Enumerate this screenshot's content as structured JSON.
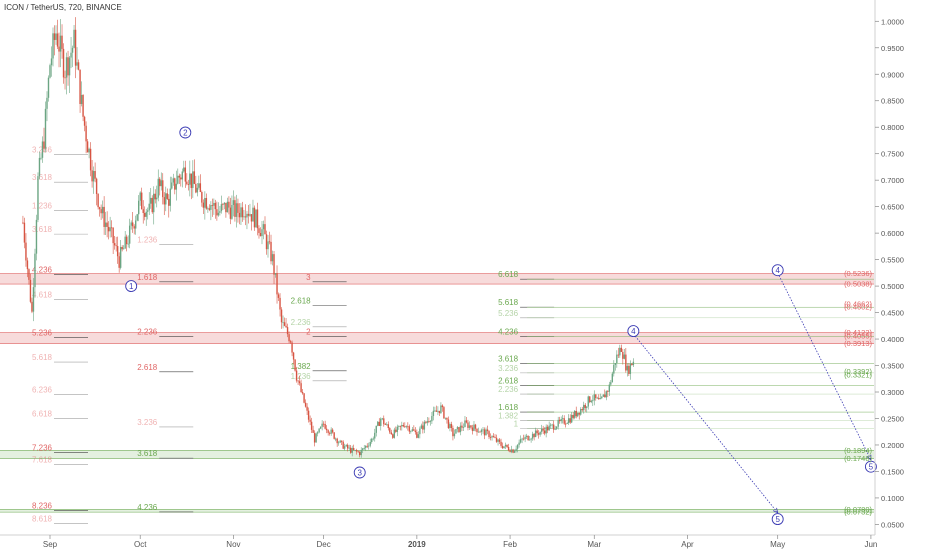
{
  "title": "ICON / TetherUS, 720, BINANCE",
  "colors": {
    "bull": "#6ba583",
    "bear": "#d75442",
    "redZone": "#f4cccc",
    "greenZone": "#d9ead3",
    "fibRed": "#e06666",
    "fibGreen": "#6aa84f",
    "wave": "#3c3cb4",
    "axis": "#555555"
  },
  "chart_data": {
    "type": "candlestick",
    "symbol": "ICON / TetherUS",
    "interval": "720",
    "exchange": "BINANCE",
    "ylim": [
      0.03,
      1.01
    ],
    "y_ticks": [
      "1.0000",
      "0.9500",
      "0.9000",
      "0.8500",
      "0.8000",
      "0.7500",
      "0.7000",
      "0.6500",
      "0.6000",
      "0.5500",
      "0.5000",
      "0.4500",
      "0.4000",
      "0.3500",
      "0.3000",
      "0.2500",
      "0.2000",
      "0.1500",
      "0.1000",
      "0.0500"
    ],
    "x_ticks": [
      "Sep",
      "Oct",
      "Nov",
      "Dec",
      "2019",
      "Feb",
      "Mar",
      "Apr",
      "May",
      "Jun"
    ],
    "price_path": [
      [
        "Aug 23",
        0.62
      ],
      [
        "Aug 26",
        0.45
      ],
      [
        "Aug 28",
        0.7
      ],
      [
        "Aug 30",
        0.78
      ],
      [
        "Sep 1",
        0.92
      ],
      [
        "Sep 3",
        0.98
      ],
      [
        "Sep 6",
        0.91
      ],
      [
        "Sep 9",
        0.96
      ],
      [
        "Sep 12",
        0.82
      ],
      [
        "Sep 15",
        0.72
      ],
      [
        "Sep 18",
        0.64
      ],
      [
        "Sep 21",
        0.6
      ],
      [
        "Sep 24",
        0.55
      ],
      [
        "Sep 27",
        0.59
      ],
      [
        "Oct 1",
        0.66
      ],
      [
        "Oct 4",
        0.64
      ],
      [
        "Oct 7",
        0.69
      ],
      [
        "Oct 10",
        0.66
      ],
      [
        "Oct 13",
        0.7
      ],
      [
        "Oct 16",
        0.72
      ],
      [
        "Oct 18",
        0.7
      ],
      [
        "Oct 21",
        0.67
      ],
      [
        "Oct 24",
        0.66
      ],
      [
        "Oct 27",
        0.64
      ],
      [
        "Oct 30",
        0.65
      ],
      [
        "Nov 2",
        0.64
      ],
      [
        "Nov 5",
        0.65
      ],
      [
        "Nov 8",
        0.63
      ],
      [
        "Nov 11",
        0.6
      ],
      [
        "Nov 14",
        0.55
      ],
      [
        "Nov 17",
        0.43
      ],
      [
        "Nov 20",
        0.4
      ],
      [
        "Nov 22",
        0.33
      ],
      [
        "Nov 25",
        0.27
      ],
      [
        "Nov 28",
        0.21
      ],
      [
        "Dec 1",
        0.24
      ],
      [
        "Dec 4",
        0.22
      ],
      [
        "Dec 7",
        0.2
      ],
      [
        "Dec 10",
        0.19
      ],
      [
        "Dec 13",
        0.185
      ],
      [
        "Dec 17",
        0.21
      ],
      [
        "Dec 20",
        0.25
      ],
      [
        "Dec 24",
        0.22
      ],
      [
        "Dec 28",
        0.24
      ],
      [
        "Jan 1",
        0.22
      ],
      [
        "Jan 5",
        0.25
      ],
      [
        "Jan 9",
        0.27
      ],
      [
        "Jan 13",
        0.22
      ],
      [
        "Jan 17",
        0.24
      ],
      [
        "Jan 21",
        0.23
      ],
      [
        "Jan 25",
        0.22
      ],
      [
        "Jan 29",
        0.2
      ],
      [
        "Feb 2",
        0.19
      ],
      [
        "Feb 5",
        0.21
      ],
      [
        "Feb 9",
        0.22
      ],
      [
        "Feb 13",
        0.23
      ],
      [
        "Feb 17",
        0.24
      ],
      [
        "Feb 21",
        0.25
      ],
      [
        "Feb 25",
        0.27
      ],
      [
        "Feb 28",
        0.29
      ],
      [
        "Mar 3",
        0.28
      ],
      [
        "Mar 6",
        0.31
      ],
      [
        "Mar 8",
        0.36
      ],
      [
        "Mar 10",
        0.385
      ],
      [
        "Mar 12",
        0.34
      ],
      [
        "Mar 14",
        0.36
      ]
    ],
    "zones": [
      {
        "low": 0.5038,
        "high": 0.5236,
        "color": "red",
        "right_labels": [
          "(0.5236)",
          "(0.5038)"
        ]
      },
      {
        "low": 0.3913,
        "high": 0.4122,
        "color": "red",
        "right_labels": [
          "(0.4122)",
          "(0.4055)",
          "(0.3913)"
        ]
      },
      {
        "low": 0.1748,
        "high": 0.1894,
        "color": "green",
        "right_labels": [
          "(0.1894)",
          "(0.1748)"
        ]
      },
      {
        "low": 0.0732,
        "high": 0.078,
        "color": "green",
        "right_labels": [
          "(0.0780)",
          "(0.0732)"
        ]
      }
    ],
    "extra_right_labels": [
      {
        "value": 0.4662,
        "label": "(0.4662)",
        "color": "red"
      },
      {
        "value": 0.4602,
        "label": "(0.4602)",
        "color": "red"
      },
      {
        "value": 0.3392,
        "label": "(0.3392)",
        "color": "green"
      },
      {
        "value": 0.3321,
        "label": "(0.3321)",
        "color": "green"
      }
    ],
    "fib_levels": [
      {
        "date": "Aug 23",
        "value": 0.5236,
        "label": "4.236",
        "color": "red",
        "opacity": 1
      },
      {
        "date": "Aug 23",
        "value": 0.4762,
        "label": "4.618",
        "color": "red",
        "opacity": 0.5
      },
      {
        "date": "Aug 23",
        "value": 0.4045,
        "label": "5.236",
        "color": "red",
        "opacity": 1
      },
      {
        "date": "Aug 23",
        "value": 0.3585,
        "label": "5.618",
        "color": "red",
        "opacity": 0.5
      },
      {
        "date": "Aug 23",
        "value": 0.297,
        "label": "6.236",
        "color": "red",
        "opacity": 0.5
      },
      {
        "date": "Aug 23",
        "value": 0.2515,
        "label": "6.618",
        "color": "red",
        "opacity": 0.5
      },
      {
        "date": "Aug 23",
        "value": 0.1876,
        "label": "7.236",
        "color": "red",
        "opacity": 1
      },
      {
        "date": "Aug 23",
        "value": 0.1646,
        "label": "7.618",
        "color": "red",
        "opacity": 0.5
      },
      {
        "date": "Aug 23",
        "value": 0.0785,
        "label": "8.236",
        "color": "red",
        "opacity": 1
      },
      {
        "date": "Aug 23",
        "value": 0.054,
        "label": "8.618",
        "color": "red",
        "opacity": 0.5
      },
      {
        "date": "Aug 23",
        "value": 0.75,
        "label": "3.236",
        "color": "red",
        "opacity": 0.5
      },
      {
        "date": "Aug 23",
        "value": 0.698,
        "label": "3.618",
        "color": "red",
        "opacity": 0.5
      },
      {
        "date": "Aug 23",
        "value": 0.645,
        "label": "1.236",
        "color": "red",
        "opacity": 0.5
      },
      {
        "date": "Aug 23",
        "value": 0.6,
        "label": "3.618",
        "color": "red",
        "opacity": 0.5
      },
      {
        "date": "Oct 8",
        "value": 0.58,
        "label": "1.236",
        "color": "red",
        "opacity": 0.5
      },
      {
        "date": "Oct 8",
        "value": 0.51,
        "label": "1.618",
        "color": "red",
        "opacity": 1
      },
      {
        "date": "Oct 8",
        "value": 0.407,
        "label": "2.236",
        "color": "red",
        "opacity": 1
      },
      {
        "date": "Oct 8",
        "value": 0.34,
        "label": "2.618",
        "color": "red",
        "opacity": 1
      },
      {
        "date": "Oct 8",
        "value": 0.236,
        "label": "3.236",
        "color": "red",
        "opacity": 0.5
      },
      {
        "date": "Oct 8",
        "value": 0.177,
        "label": "3.618",
        "color": "green",
        "opacity": 1
      },
      {
        "date": "Oct 8",
        "value": 0.0755,
        "label": "4.236",
        "color": "green",
        "opacity": 1
      },
      {
        "date": "Nov 28",
        "value": 0.51,
        "label": "3",
        "color": "red",
        "opacity": 1
      },
      {
        "date": "Nov 28",
        "value": 0.407,
        "label": "2",
        "color": "red",
        "opacity": 1
      },
      {
        "date": "Nov 28",
        "value": 0.465,
        "label": "2.618",
        "color": "green",
        "opacity": 1
      },
      {
        "date": "Nov 28",
        "value": 0.342,
        "label": "1.382",
        "color": "green",
        "opacity": 1
      },
      {
        "date": "Nov 28",
        "value": 0.425,
        "label": "2.236",
        "color": "green",
        "opacity": 0.5
      },
      {
        "date": "Nov 28",
        "value": 0.323,
        "label": "1.236",
        "color": "green",
        "opacity": 0.5
      },
      {
        "date": "Feb 5",
        "value": 0.515,
        "label": "6.618",
        "color": "green",
        "opacity": 1
      },
      {
        "date": "Feb 5",
        "value": 0.462,
        "label": "5.618",
        "color": "green",
        "opacity": 1
      },
      {
        "date": "Feb 5",
        "value": 0.442,
        "label": "5.236",
        "color": "green",
        "opacity": 0.5
      },
      {
        "date": "Feb 5",
        "value": 0.407,
        "label": "4.236",
        "color": "green",
        "opacity": 1
      },
      {
        "date": "Feb 5",
        "value": 0.356,
        "label": "3.618",
        "color": "green",
        "opacity": 1
      },
      {
        "date": "Feb 5",
        "value": 0.338,
        "label": "3.236",
        "color": "green",
        "opacity": 0.5
      },
      {
        "date": "Feb 5",
        "value": 0.314,
        "label": "2.618",
        "color": "green",
        "opacity": 1
      },
      {
        "date": "Feb 5",
        "value": 0.298,
        "label": "2.236",
        "color": "green",
        "opacity": 0.5
      },
      {
        "date": "Feb 5",
        "value": 0.264,
        "label": "1.618",
        "color": "green",
        "opacity": 1
      },
      {
        "date": "Feb 5",
        "value": 0.248,
        "label": "1.382",
        "color": "green",
        "opacity": 0.5
      },
      {
        "date": "Feb 5",
        "value": 0.233,
        "label": "1",
        "color": "green",
        "opacity": 0.5
      }
    ],
    "waves": [
      {
        "label": "1",
        "date": "Sep 28",
        "value": 0.5
      },
      {
        "label": "2",
        "date": "Oct 16",
        "value": 0.79
      },
      {
        "label": "3",
        "date": "Dec 13",
        "value": 0.148
      },
      {
        "label": "4",
        "date": "Mar 14",
        "value": 0.415
      },
      {
        "label": "5",
        "date": "May 1",
        "value": 0.06
      },
      {
        "label": "4",
        "date": "May 1",
        "value": 0.53
      },
      {
        "label": "5",
        "date": "Jun 1",
        "value": 0.159
      }
    ],
    "projections": [
      {
        "from_date": "Mar 14",
        "from_value": 0.41,
        "to_date": "May 1",
        "to_value": 0.072
      },
      {
        "from_date": "May 1",
        "from_value": 0.525,
        "to_date": "Jun 1",
        "to_value": 0.172
      }
    ]
  }
}
